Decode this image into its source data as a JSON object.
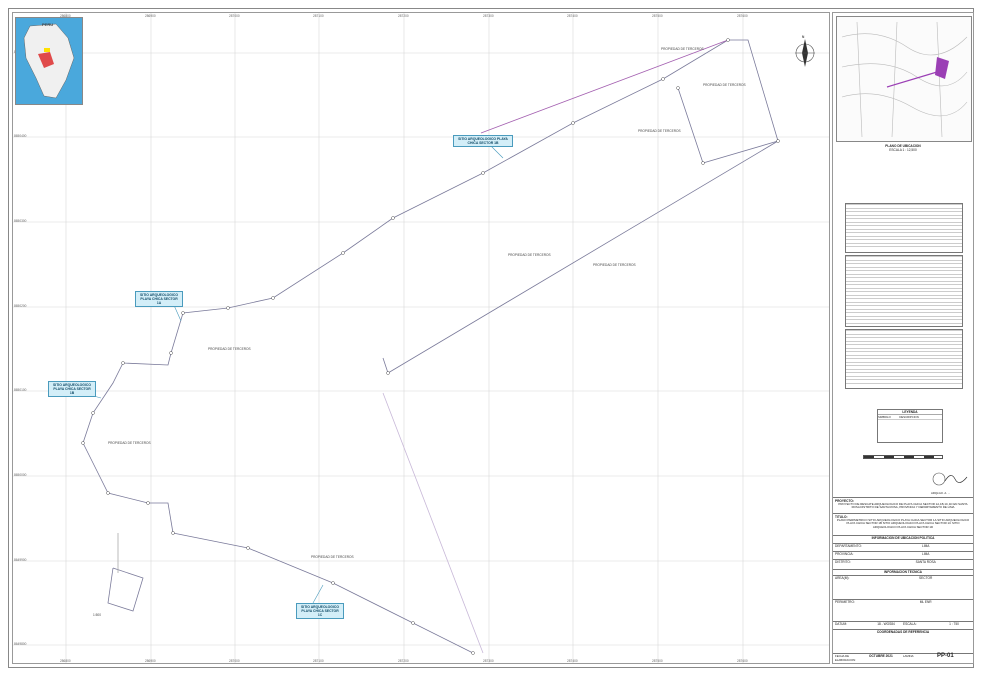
{
  "map": {
    "top_ticks": [
      "286800",
      "286900",
      "287000",
      "287100",
      "287200",
      "287300",
      "287400",
      "287500",
      "287600"
    ],
    "bottom_ticks": [
      "286800",
      "286900",
      "287000",
      "287100",
      "287200",
      "287300",
      "287400",
      "287500",
      "287600"
    ],
    "left_ticks": [
      "8650500",
      "8650400",
      "8650300",
      "8650200",
      "8650100",
      "8650000",
      "8649900",
      "8649800"
    ],
    "inset_country": "PERU",
    "inset_scale": "1:500",
    "north_symbol": "N",
    "callouts": [
      {
        "text": "SITIO ARQUEOLOGICO PLAYA CHICA SECTOR 1B"
      },
      {
        "text": "SITIO ARQUEOLOGICO PLAYA CHICA SECTOR 1A"
      },
      {
        "text": "SITIO ARQUEOLOGICO PLAYA CHICA SECTOR 1B"
      },
      {
        "text": "SITIO ARQUEOLOGICO PLAYA CHICA SECTOR 1C"
      }
    ],
    "property_labels": [
      "PROPIEDAD DE TERCEROS",
      "PROPIEDAD DE TERCEROS",
      "PROPIEDAD DE TERCEROS",
      "PROPIEDAD DE TERCEROS",
      "PROPIEDAD DE TERCEROS",
      "PROPIEDAD DE TERCEROS",
      "PROPIEDAD DE TERCEROS",
      "PROPIEDAD DE TERCEROS"
    ]
  },
  "panel": {
    "location_title": "PLANO DE UBICACION",
    "location_scale": "ESCALA 1 : 12,500",
    "legend_title": "LEYENDA",
    "legend_col1": "SIMBOLO",
    "legend_col2": "DESCRIPCION",
    "signature_caption": "ARQLGO. A. ...",
    "project_label": "PROYECTO:",
    "project_text": "PROYECTO DE RESCATE ARQUEOLOGICO DE PLAYA CHICA SECTOR 1A,1B,1C,1D EN SANTA ROSA DISTRITO DE SANTA ROSA, PROVINCIA Y DEPARTAMENTO DE LIMA",
    "title_label": "TITULO:",
    "title_text": "PLANO PERIMETRICO SITIO ARQUEOLOGICO PLAYA CHICA SECTOR 1A SITIO ARQUEOLOGICO PLAYA CHICA SECTOR 1B SITIO ARQUEOLOGICO PLAYA CHICA SECTOR 1C SITIO ARQUEOLOGICO PLAYA CHICA SECTOR 1D",
    "political_header": "INFORMACION DE UBICACION POLITICA",
    "department_label": "DEPARTAMENTO:",
    "department_value": "LIMA",
    "province_label": "PROVINCIA:",
    "province_value": "LIMA",
    "district_label": "DISTRITO:",
    "district_value": "SANTA ROSA",
    "tech_header": "INFORMACION TECNICA",
    "area_label": "AREA(M):",
    "area_value": "SECTOR",
    "perimeter_label": "PERIMETRO:",
    "perimeter_value": "ML ENR",
    "scale_label": "ESCALA:",
    "scale_value": "1 : 750",
    "datum_label": "DATUM:",
    "datum_value": "18 - WGS84",
    "coords_header": "COORDENADAS DE REFERENCIA",
    "sheet_date_label": "FECHA DE ELABORACION:",
    "sheet_date": "OCTUBRE 2021",
    "sheet_label": "LAMINA:",
    "sheet_number": "PP-01"
  }
}
